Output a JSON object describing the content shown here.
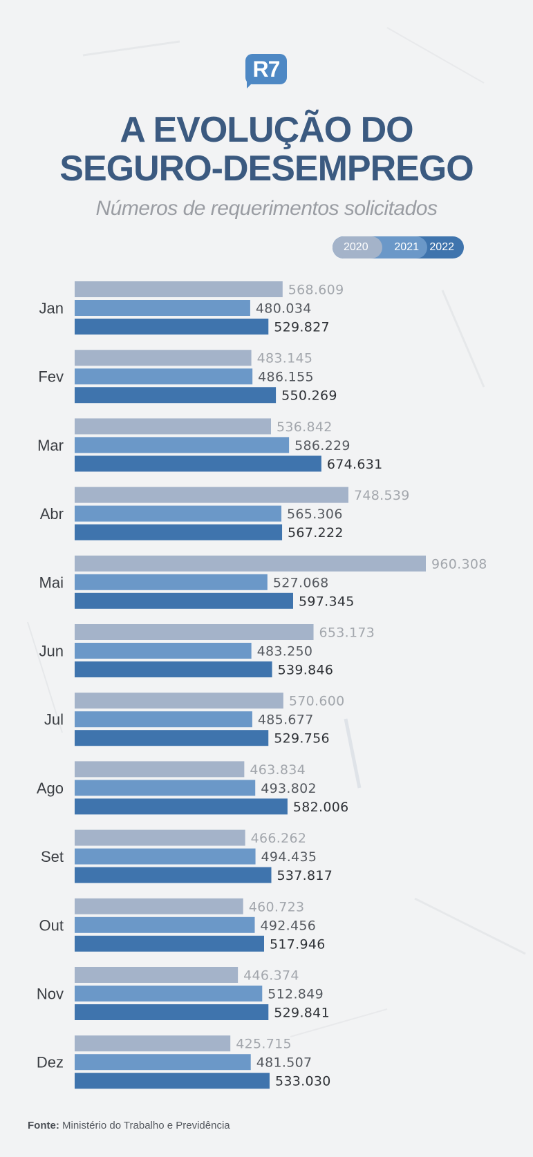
{
  "header": {
    "logo_text": "R7",
    "title_line1": "A EVOLUÇÃO DO",
    "title_line2": "SEGURO-DESEMPREGO",
    "subtitle": "Números de requerimentos solicitados"
  },
  "legend": {
    "y2020": "2020",
    "y2021": "2021",
    "y2022": "2022"
  },
  "colors": {
    "s2020": "#a4b3c9",
    "s2021": "#6b98c8",
    "s2022": "#3f74ad",
    "label2020": "#a2a6ac",
    "label2021": "#55595f",
    "label2022": "#2e3136",
    "category": "#3a3d42",
    "title": "#3b5a80"
  },
  "chart_data": {
    "type": "bar",
    "orientation": "horizontal",
    "categories": [
      "Jan",
      "Fev",
      "Mar",
      "Abr",
      "Mai",
      "Jun",
      "Jul",
      "Ago",
      "Set",
      "Out",
      "Nov",
      "Dez"
    ],
    "series": [
      {
        "name": "2020",
        "values": [
          568609,
          483145,
          536842,
          748539,
          960308,
          653173,
          570600,
          463834,
          466262,
          460723,
          446374,
          425715
        ],
        "labels": [
          "568.609",
          "483.145",
          "536.842",
          "748.539",
          "960.308",
          "653.173",
          "570.600",
          "463.834",
          "466.262",
          "460.723",
          "446.374",
          "425.715"
        ]
      },
      {
        "name": "2021",
        "values": [
          480034,
          486155,
          586229,
          565306,
          527068,
          483250,
          485677,
          493802,
          494435,
          492456,
          512849,
          481507
        ],
        "labels": [
          "480.034",
          "486.155",
          "586.229",
          "565.306",
          "527.068",
          "483.250",
          "485.677",
          "493.802",
          "494.435",
          "492.456",
          "512.849",
          "481.507"
        ]
      },
      {
        "name": "2022",
        "values": [
          529827,
          550269,
          674631,
          567222,
          597345,
          539846,
          529756,
          582006,
          537817,
          517946,
          529841,
          533030
        ],
        "labels": [
          "529.827",
          "550.269",
          "674.631",
          "567.222",
          "597.345",
          "539.846",
          "529.756",
          "582.006",
          "537.817",
          "517.946",
          "529.841",
          "533.030"
        ]
      }
    ],
    "xlim": [
      0,
      960308
    ],
    "grid": false,
    "legend_position": "top-right"
  },
  "source": {
    "label": "Fonte:",
    "text": "Ministério do Trabalho e Previdência"
  }
}
